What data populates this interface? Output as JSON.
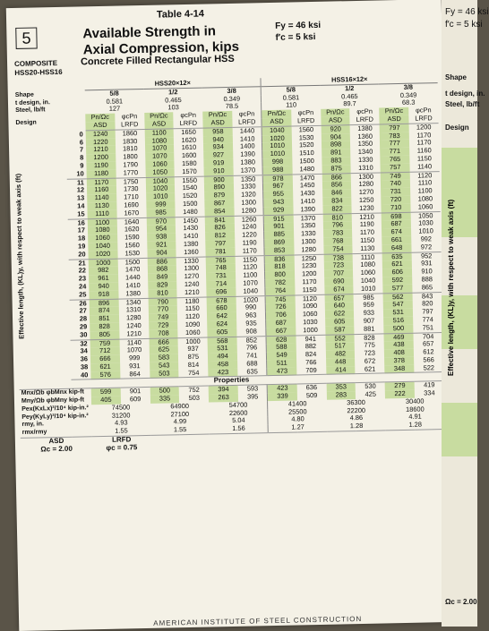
{
  "header": {
    "page_box": "5",
    "table_number": "Table 4-14",
    "title_line1": "Available Strength in",
    "title_line2": "Axial Compression, kips",
    "fy": "Fy = 46 ksi",
    "fc": "f′c = 5 ksi",
    "composite": "COMPOSITE",
    "section_range": "HSS20-HSS16",
    "subtitle": "Concrete Filled Rectangular HSS"
  },
  "shape_header": {
    "shape_label": "Shape",
    "design_in_label": "t design, in.",
    "steel_label": "Steel, lb/ft",
    "design_label": "Design",
    "group1": "HSS20×12×",
    "group2": "HSS16×12×",
    "sizes": [
      "5/8",
      "1/2",
      "3/8",
      "5/8",
      "1/2",
      "3/8"
    ],
    "tdesign": [
      "0.581",
      "0.465",
      "0.349",
      "0.581",
      "0.465",
      "0.349"
    ],
    "steel": [
      "127",
      "103",
      "78.5",
      "110",
      "89.7",
      "68.3"
    ],
    "pn_omega": "Pn/Ωc",
    "phi_pn": "φcPn",
    "asd": "ASD",
    "lrfd": "LRFD"
  },
  "axis_label": "Effective length, (KL)y, with respect to weak axis (ft)",
  "rows": [
    {
      "kl": "0",
      "v": [
        "1240",
        "1860",
        "1100",
        "1650",
        "958",
        "1440",
        "1040",
        "1560",
        "920",
        "1380",
        "797",
        "1200"
      ]
    },
    {
      "kl": "6",
      "v": [
        "1220",
        "1830",
        "1080",
        "1620",
        "940",
        "1410",
        "1020",
        "1530",
        "904",
        "1360",
        "783",
        "1170"
      ]
    },
    {
      "kl": "7",
      "v": [
        "1210",
        "1810",
        "1070",
        "1610",
        "934",
        "1400",
        "1010",
        "1520",
        "898",
        "1350",
        "777",
        "1170"
      ]
    },
    {
      "kl": "8",
      "v": [
        "1200",
        "1800",
        "1070",
        "1600",
        "927",
        "1390",
        "1010",
        "1510",
        "891",
        "1340",
        "771",
        "1160"
      ]
    },
    {
      "kl": "9",
      "v": [
        "1190",
        "1790",
        "1060",
        "1580",
        "919",
        "1380",
        "998",
        "1500",
        "883",
        "1330",
        "765",
        "1150"
      ]
    },
    {
      "kl": "10",
      "v": [
        "1180",
        "1770",
        "1050",
        "1570",
        "910",
        "1370",
        "988",
        "1480",
        "875",
        "1310",
        "757",
        "1140"
      ]
    },
    {
      "kl": "11",
      "v": [
        "1170",
        "1750",
        "1040",
        "1550",
        "900",
        "1350",
        "978",
        "1470",
        "866",
        "1300",
        "749",
        "1120"
      ]
    },
    {
      "kl": "12",
      "v": [
        "1160",
        "1730",
        "1020",
        "1540",
        "890",
        "1330",
        "967",
        "1450",
        "856",
        "1280",
        "740",
        "1110"
      ]
    },
    {
      "kl": "13",
      "v": [
        "1140",
        "1710",
        "1010",
        "1520",
        "879",
        "1320",
        "955",
        "1430",
        "846",
        "1270",
        "731",
        "1100"
      ]
    },
    {
      "kl": "14",
      "v": [
        "1130",
        "1690",
        "999",
        "1500",
        "867",
        "1300",
        "943",
        "1410",
        "834",
        "1250",
        "720",
        "1080"
      ]
    },
    {
      "kl": "15",
      "v": [
        "1110",
        "1670",
        "985",
        "1480",
        "854",
        "1280",
        "929",
        "1390",
        "822",
        "1230",
        "710",
        "1060"
      ]
    },
    {
      "kl": "16",
      "v": [
        "1100",
        "1640",
        "970",
        "1450",
        "841",
        "1260",
        "915",
        "1370",
        "810",
        "1210",
        "698",
        "1050"
      ]
    },
    {
      "kl": "17",
      "v": [
        "1080",
        "1620",
        "954",
        "1430",
        "826",
        "1240",
        "901",
        "1350",
        "796",
        "1190",
        "687",
        "1030"
      ]
    },
    {
      "kl": "18",
      "v": [
        "1060",
        "1590",
        "938",
        "1410",
        "812",
        "1220",
        "885",
        "1330",
        "783",
        "1170",
        "674",
        "1010"
      ]
    },
    {
      "kl": "19",
      "v": [
        "1040",
        "1560",
        "921",
        "1380",
        "797",
        "1190",
        "869",
        "1300",
        "768",
        "1150",
        "661",
        "992"
      ]
    },
    {
      "kl": "20",
      "v": [
        "1020",
        "1530",
        "904",
        "1360",
        "781",
        "1170",
        "853",
        "1280",
        "754",
        "1130",
        "648",
        "972"
      ]
    },
    {
      "kl": "21",
      "v": [
        "1000",
        "1500",
        "886",
        "1330",
        "765",
        "1150",
        "836",
        "1250",
        "738",
        "1110",
        "635",
        "952"
      ]
    },
    {
      "kl": "22",
      "v": [
        "982",
        "1470",
        "868",
        "1300",
        "748",
        "1120",
        "818",
        "1230",
        "723",
        "1080",
        "621",
        "931"
      ]
    },
    {
      "kl": "23",
      "v": [
        "961",
        "1440",
        "849",
        "1270",
        "731",
        "1100",
        "800",
        "1200",
        "707",
        "1060",
        "606",
        "910"
      ]
    },
    {
      "kl": "24",
      "v": [
        "940",
        "1410",
        "829",
        "1240",
        "714",
        "1070",
        "782",
        "1170",
        "690",
        "1040",
        "592",
        "888"
      ]
    },
    {
      "kl": "25",
      "v": [
        "918",
        "1380",
        "810",
        "1210",
        "696",
        "1040",
        "764",
        "1150",
        "674",
        "1010",
        "577",
        "865"
      ]
    },
    {
      "kl": "26",
      "v": [
        "896",
        "1340",
        "790",
        "1180",
        "678",
        "1020",
        "745",
        "1120",
        "657",
        "985",
        "562",
        "843"
      ]
    },
    {
      "kl": "27",
      "v": [
        "874",
        "1310",
        "770",
        "1150",
        "660",
        "990",
        "726",
        "1090",
        "640",
        "959",
        "547",
        "820"
      ]
    },
    {
      "kl": "28",
      "v": [
        "851",
        "1280",
        "749",
        "1120",
        "642",
        "963",
        "706",
        "1060",
        "622",
        "933",
        "531",
        "797"
      ]
    },
    {
      "kl": "29",
      "v": [
        "828",
        "1240",
        "729",
        "1090",
        "624",
        "935",
        "687",
        "1030",
        "605",
        "907",
        "516",
        "774"
      ]
    },
    {
      "kl": "30",
      "v": [
        "805",
        "1210",
        "708",
        "1060",
        "605",
        "908",
        "667",
        "1000",
        "587",
        "881",
        "500",
        "751"
      ]
    },
    {
      "kl": "32",
      "v": [
        "759",
        "1140",
        "666",
        "1000",
        "568",
        "852",
        "628",
        "941",
        "552",
        "828",
        "469",
        "704"
      ]
    },
    {
      "kl": "34",
      "v": [
        "712",
        "1070",
        "625",
        "937",
        "531",
        "796",
        "588",
        "882",
        "517",
        "775",
        "438",
        "657"
      ]
    },
    {
      "kl": "36",
      "v": [
        "666",
        "999",
        "583",
        "875",
        "494",
        "741",
        "549",
        "824",
        "482",
        "723",
        "408",
        "612"
      ]
    },
    {
      "kl": "38",
      "v": [
        "621",
        "931",
        "543",
        "814",
        "458",
        "688",
        "511",
        "766",
        "448",
        "672",
        "378",
        "566"
      ]
    },
    {
      "kl": "40",
      "v": [
        "576",
        "864",
        "503",
        "754",
        "423",
        "635",
        "473",
        "709",
        "414",
        "621",
        "348",
        "522"
      ]
    }
  ],
  "properties": {
    "title": "Properties",
    "mnx_label": "Mnx/Ωb  φbMnx  kip-ft",
    "mny_label": "Mny/Ωb  φbMny  kip-ft",
    "mnx": [
      "599",
      "901",
      "500",
      "752",
      "394",
      "593",
      "423",
      "636",
      "353",
      "530",
      "279",
      "419"
    ],
    "mny": [
      "405",
      "609",
      "335",
      "503",
      "263",
      "395",
      "339",
      "509",
      "283",
      "425",
      "222",
      "334"
    ],
    "pex_label": "Pex(KxLx)²/10⁴  kip-in.²",
    "pey_label": "Pey(KyLy)²/10⁴  kip-in.²",
    "pex": [
      "74500",
      "64900",
      "54700",
      "41400",
      "36300",
      "30400"
    ],
    "pey": [
      "31200",
      "27100",
      "22600",
      "25500",
      "22200",
      "18600"
    ],
    "rmy_label": "rmy, in.",
    "ratio_label": "rmx/rmy",
    "rmy": [
      "4.93",
      "4.99",
      "5.04",
      "4.80",
      "4.86",
      "4.91"
    ],
    "ratio": [
      "1.55",
      "1.55",
      "1.56",
      "1.27",
      "1.28",
      "1.28"
    ]
  },
  "footer": {
    "asd": "ASD",
    "lrfd": "LRFD",
    "omega": "Ωc = 2.00",
    "phi": "φc = 0.75",
    "publisher": "AMERICAN INSTITUTE OF STEEL CONSTRUCTION"
  },
  "right_strip": {
    "fy": "Fy = 46 ksi",
    "fc": "f′c = 5 ksi",
    "shape": "Shape",
    "tdesign": "t design, in.",
    "steel": "Steel, lb/ft",
    "design": "Design",
    "axis": "Effective length, (KL)y, with respect to weak axis (ft)",
    "omega": "Ωc = 2.00"
  },
  "colors": {
    "green": "#c8dca0",
    "paper": "#f4f1e6"
  }
}
